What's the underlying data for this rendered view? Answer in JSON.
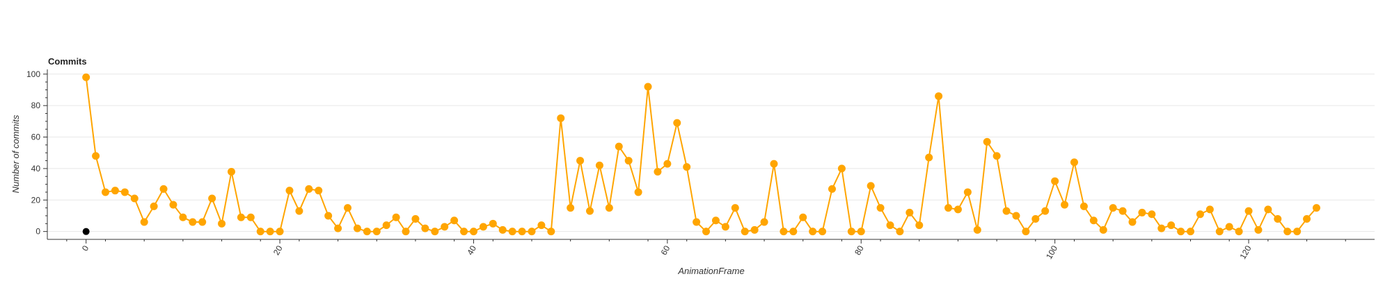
{
  "chart_data": {
    "type": "line",
    "title": "Commits",
    "xlabel": "AnimationFrame",
    "ylabel": "Number of commits",
    "xlim": [
      -4,
      133
    ],
    "ylim": [
      -5,
      103
    ],
    "x_ticks": [
      0,
      20,
      40,
      60,
      80,
      100,
      120
    ],
    "y_ticks": [
      0,
      20,
      40,
      60,
      80,
      100
    ],
    "grid": true,
    "colors": {
      "series": "#FFA500",
      "highlight": "#000000",
      "grid": "#e8e8e8",
      "axis": "#333333"
    },
    "series": [
      {
        "values": [
          98,
          48,
          25,
          26,
          25,
          21,
          6,
          16,
          27,
          17,
          9,
          6,
          6,
          21,
          5,
          38,
          9,
          9,
          0,
          0,
          0,
          26,
          13,
          27,
          26,
          10,
          2,
          15,
          2,
          0,
          0,
          4,
          9,
          0,
          8,
          2,
          0,
          3,
          7,
          0,
          0,
          3,
          5,
          1,
          0,
          0,
          0,
          4,
          0,
          72,
          15,
          45,
          13,
          42,
          15,
          54,
          45,
          25,
          92,
          38,
          43,
          69,
          41,
          6,
          0,
          7,
          3,
          15,
          0,
          1,
          6,
          43,
          0,
          0,
          9,
          0,
          0,
          27,
          40,
          0,
          0,
          29,
          15,
          4,
          0,
          12,
          4,
          47,
          86,
          15,
          14,
          25,
          1,
          57,
          48,
          13,
          10,
          0,
          8,
          13,
          32,
          17,
          44,
          16,
          7,
          1,
          15,
          13,
          6,
          12,
          11,
          2,
          4,
          0,
          0,
          11,
          14,
          0,
          3,
          0,
          13,
          1,
          14,
          8,
          0,
          0,
          8,
          15
        ]
      }
    ],
    "highlight_point": {
      "x": 0,
      "y": 0
    }
  }
}
